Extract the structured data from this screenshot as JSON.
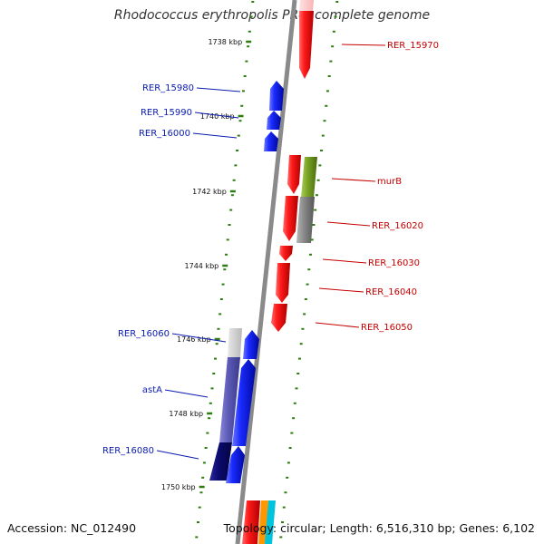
{
  "title": "Rhodococcus erythropolis PR4, complete genome",
  "accession": "Accession: NC_012490",
  "summary": "Topology: circular; Length: 6,516,310 bp; Genes: 6,102",
  "colors": {
    "forward": "#d50000",
    "reverse": "#0a1bd6",
    "label_forward": "#c40000",
    "label_reverse": "#0a1bb0",
    "tick": "#2e7d10",
    "backbone": "#8a8a8a"
  },
  "kbp_ticks": [
    {
      "label": "1738 kbp"
    },
    {
      "label": "1740 kbp"
    },
    {
      "label": "1742 kbp"
    },
    {
      "label": "1744 kbp"
    },
    {
      "label": "1746 kbp"
    },
    {
      "label": "1748 kbp"
    },
    {
      "label": "1750 kbp"
    }
  ],
  "genes_forward": [
    {
      "name": "RER_15970"
    },
    {
      "name": "murB"
    },
    {
      "name": "RER_16020"
    },
    {
      "name": "RER_16030"
    },
    {
      "name": "RER_16040"
    },
    {
      "name": "RER_16050"
    }
  ],
  "genes_reverse": [
    {
      "name": "RER_15980"
    },
    {
      "name": "RER_15990"
    },
    {
      "name": "RER_16000"
    },
    {
      "name": "RER_16060"
    },
    {
      "name": "astA"
    },
    {
      "name": "RER_16080"
    }
  ]
}
